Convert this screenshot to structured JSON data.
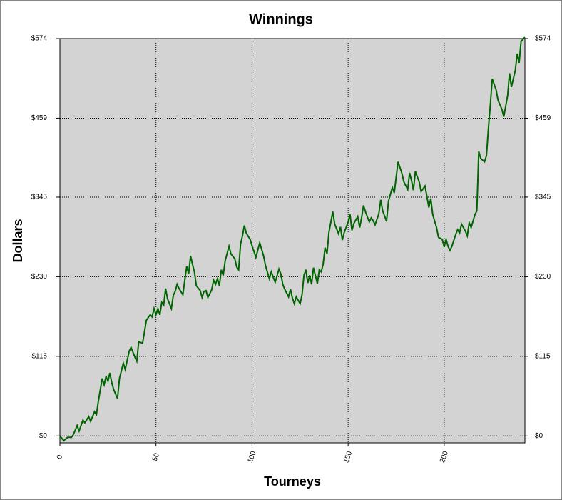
{
  "chart_data": {
    "type": "line",
    "title": "Winnings",
    "x_label": "Tourneys",
    "y_label": "Dollars",
    "color": "#006400",
    "grid": true,
    "xlim": [
      0,
      242
    ],
    "ylim": [
      -10,
      574
    ],
    "xticks": [
      0,
      50,
      100,
      150,
      200
    ],
    "yticks": [
      {
        "value": 0,
        "label": "$0"
      },
      {
        "value": 115,
        "label": "$115"
      },
      {
        "value": 230,
        "label": "$230"
      },
      {
        "value": 345,
        "label": "$345"
      },
      {
        "value": 459,
        "label": "$459"
      },
      {
        "value": 574,
        "label": "$574"
      }
    ],
    "x": [
      0,
      2,
      4,
      6,
      7,
      9,
      10,
      12,
      13,
      15,
      16,
      18,
      19,
      20,
      22,
      23,
      24,
      25,
      26,
      27,
      28,
      30,
      31,
      33,
      34,
      36,
      37,
      39,
      40,
      41,
      43,
      44,
      45,
      47,
      48,
      49,
      50,
      51,
      52,
      53,
      54,
      55,
      56,
      58,
      59,
      60,
      61,
      62,
      64,
      65,
      66,
      67,
      68,
      69,
      70,
      71,
      73,
      74,
      75,
      76,
      77,
      79,
      80,
      81,
      82,
      83,
      84,
      85,
      86,
      88,
      89,
      91,
      92,
      93,
      94,
      95,
      96,
      97,
      99,
      100,
      102,
      104,
      106,
      107,
      109,
      110,
      112,
      113,
      114,
      115,
      116,
      117,
      119,
      120,
      121,
      122,
      123,
      125,
      126,
      127,
      128,
      129,
      130,
      131,
      132,
      134,
      135,
      136,
      137,
      138,
      139,
      140,
      142,
      143,
      145,
      146,
      147,
      148,
      150,
      151,
      152,
      153,
      155,
      156,
      157,
      158,
      159,
      161,
      162,
      163,
      164,
      166,
      167,
      168,
      170,
      171,
      173,
      174,
      175,
      176,
      178,
      179,
      181,
      182,
      183,
      184,
      185,
      187,
      188,
      190,
      191,
      192,
      193,
      194,
      196,
      197,
      199,
      200,
      201,
      202,
      203,
      204,
      206,
      207,
      208,
      209,
      211,
      212,
      213,
      214,
      216,
      217,
      218,
      219,
      221,
      222,
      223,
      224,
      225,
      227,
      228,
      230,
      231,
      233,
      234,
      235,
      237,
      238,
      239,
      240,
      242
    ],
    "values": [
      0,
      -7,
      -2,
      -2,
      2,
      15,
      7,
      23,
      19,
      28,
      21,
      35,
      31,
      50,
      83,
      74,
      86,
      79,
      91,
      77,
      67,
      54,
      83,
      105,
      96,
      122,
      128,
      114,
      108,
      136,
      134,
      150,
      167,
      175,
      172,
      184,
      175,
      184,
      175,
      193,
      189,
      213,
      198,
      184,
      203,
      209,
      219,
      213,
      204,
      225,
      245,
      234,
      260,
      248,
      237,
      217,
      210,
      200,
      209,
      210,
      200,
      211,
      225,
      219,
      227,
      217,
      240,
      232,
      253,
      274,
      263,
      256,
      244,
      240,
      277,
      289,
      304,
      293,
      284,
      275,
      258,
      279,
      260,
      246,
      227,
      237,
      222,
      231,
      241,
      234,
      219,
      212,
      201,
      212,
      199,
      191,
      201,
      191,
      204,
      232,
      240,
      221,
      232,
      219,
      243,
      220,
      240,
      237,
      248,
      272,
      263,
      294,
      324,
      306,
      292,
      302,
      283,
      294,
      309,
      320,
      297,
      307,
      317,
      301,
      315,
      333,
      324,
      309,
      315,
      311,
      305,
      321,
      341,
      325,
      310,
      339,
      359,
      351,
      374,
      396,
      379,
      367,
      356,
      380,
      369,
      355,
      382,
      367,
      353,
      361,
      346,
      330,
      343,
      320,
      301,
      287,
      284,
      273,
      284,
      274,
      268,
      274,
      291,
      298,
      293,
      306,
      296,
      289,
      308,
      301,
      320,
      325,
      411,
      401,
      396,
      405,
      444,
      478,
      516,
      500,
      485,
      472,
      461,
      492,
      524,
      504,
      528,
      552,
      539,
      570,
      576
    ]
  }
}
